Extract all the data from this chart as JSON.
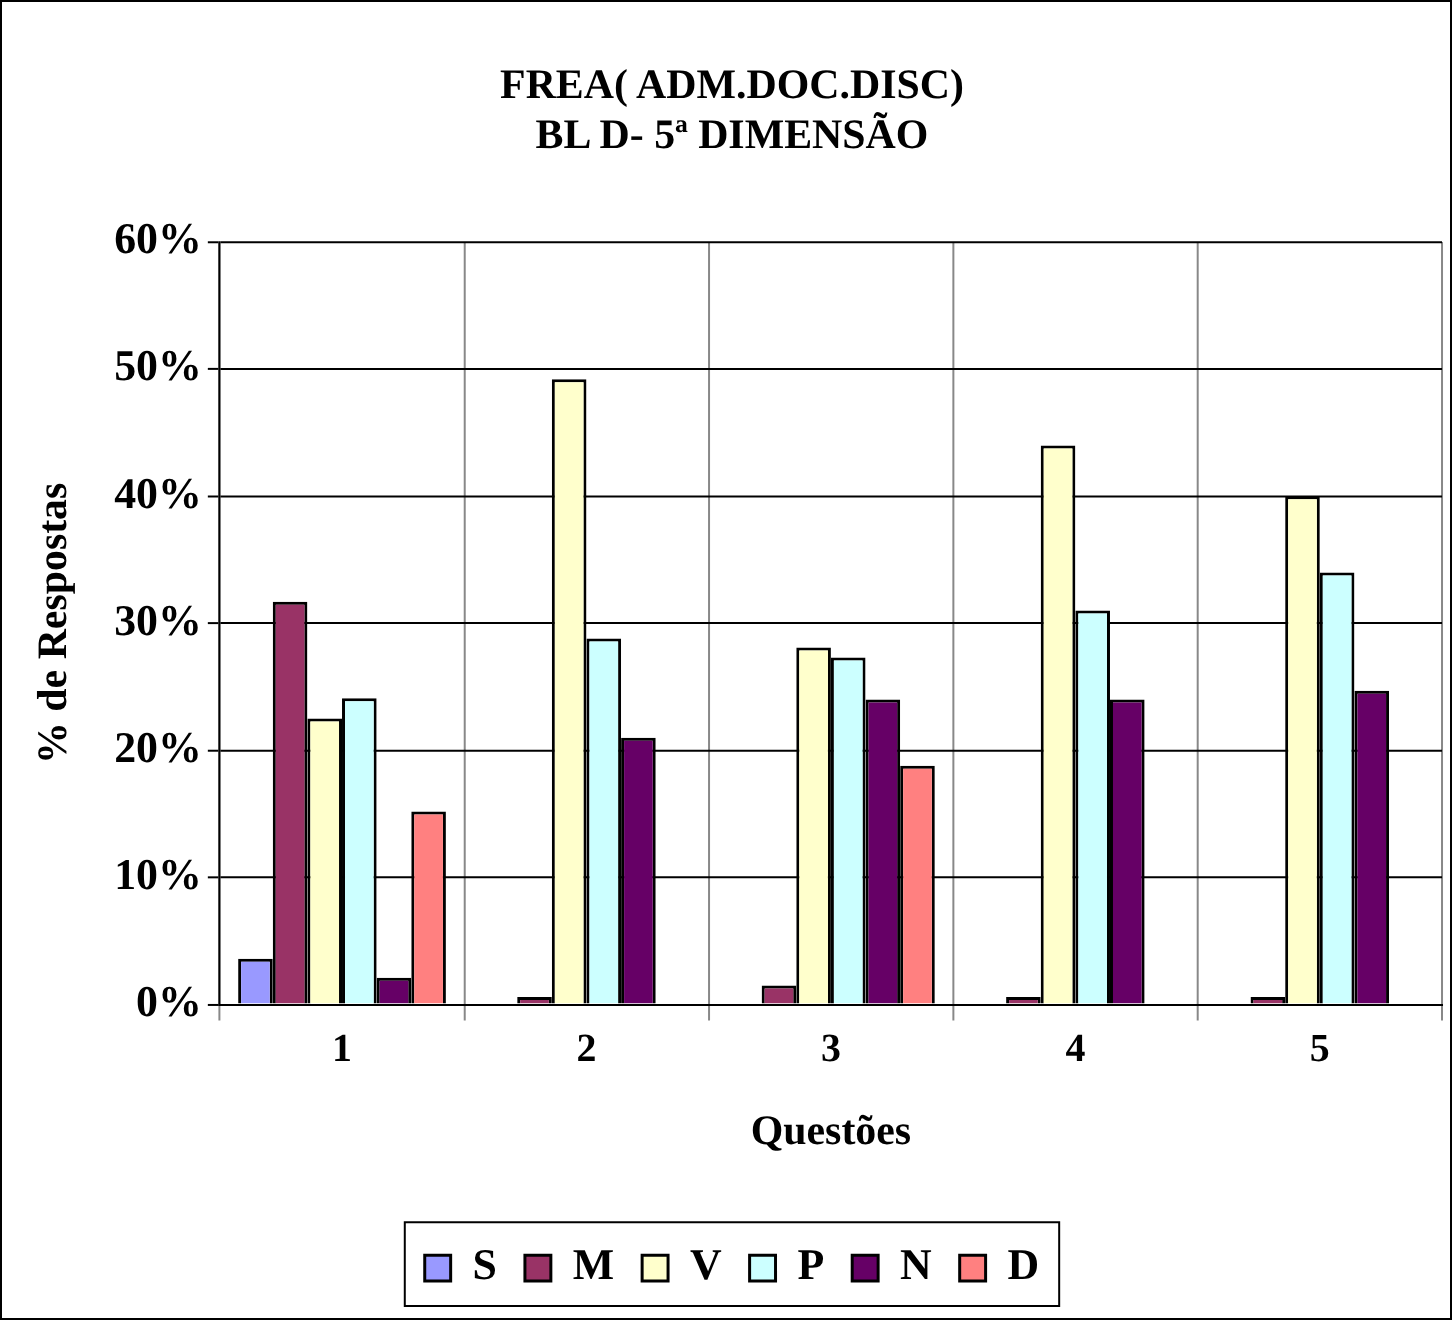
{
  "chart_data": {
    "type": "bar",
    "title": [
      "FREA( ADM.DOC.DISC)",
      "BL D- 5ª DIMENSÃO"
    ],
    "xlabel": "Questões",
    "ylabel": "% de Respostas",
    "categories": [
      "1",
      "2",
      "3",
      "4",
      "5"
    ],
    "series": [
      {
        "name": "S",
        "color": "#9999ff",
        "values": [
          3.6,
          0,
          0,
          0,
          0
        ]
      },
      {
        "name": "M",
        "color": "#993366",
        "values": [
          31.7,
          0.6,
          1.5,
          0.6,
          0.6
        ]
      },
      {
        "name": "V",
        "color": "#ffffcc",
        "values": [
          22.5,
          49.2,
          28.1,
          44.0,
          40.0
        ]
      },
      {
        "name": "P",
        "color": "#ccffff",
        "values": [
          24.1,
          28.8,
          27.3,
          31.0,
          34.0
        ]
      },
      {
        "name": "N",
        "color": "#660066",
        "values": [
          2.1,
          21.0,
          24.0,
          24.0,
          24.7
        ]
      },
      {
        "name": "D",
        "color": "#ff8080",
        "values": [
          15.2,
          0,
          18.8,
          0,
          0
        ]
      }
    ],
    "ylim": [
      0,
      60
    ],
    "yticks": [
      {
        "value": 0,
        "label": "0%"
      },
      {
        "value": 10,
        "label": "10%"
      },
      {
        "value": 20,
        "label": "20%"
      },
      {
        "value": 30,
        "label": "30%"
      },
      {
        "value": 40,
        "label": "40%"
      },
      {
        "value": 50,
        "label": "50%"
      },
      {
        "value": 60,
        "label": "60%"
      }
    ],
    "grid": true,
    "legend": "bottom"
  }
}
